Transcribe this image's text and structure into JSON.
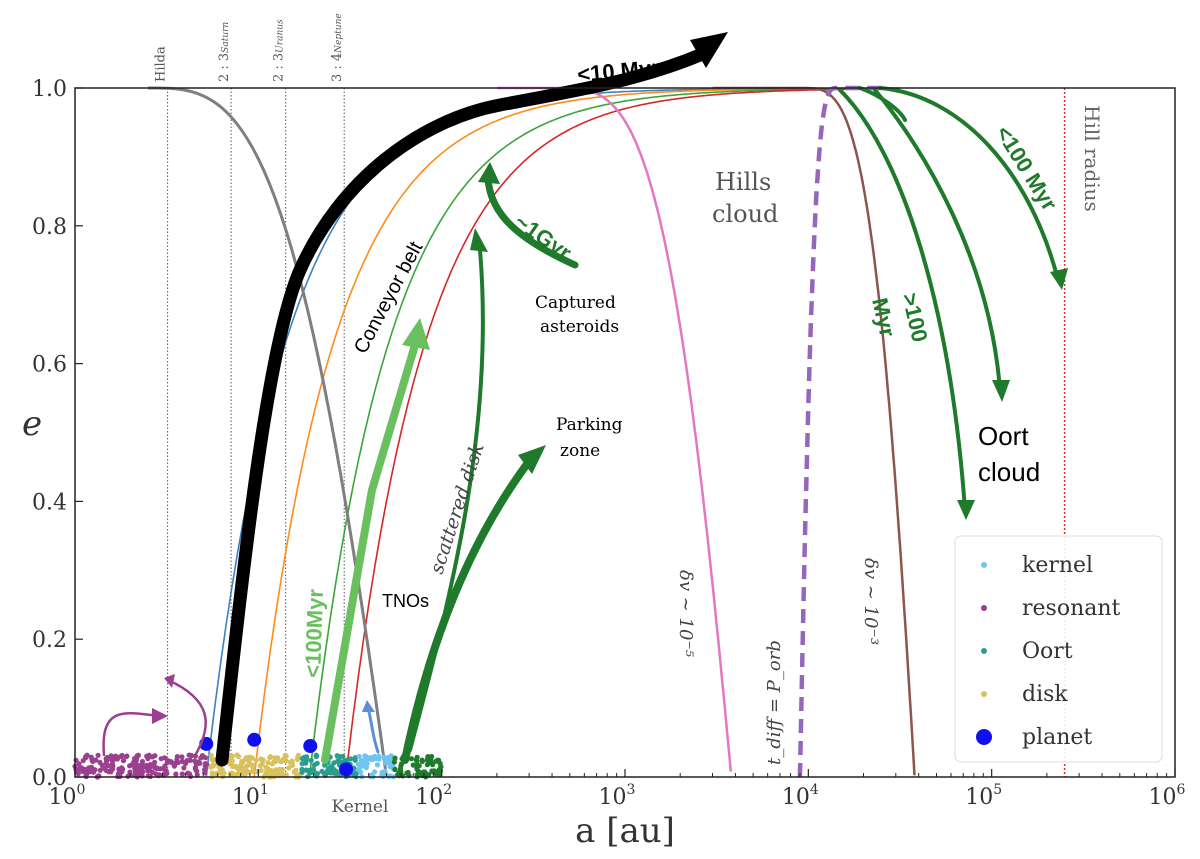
{
  "chart_data": {
    "type": "line",
    "xscale": "log",
    "xlabel": "a [au]",
    "ylabel": "e",
    "xlim": [
      1,
      1000000
    ],
    "ylim": [
      0,
      1.0
    ],
    "xticks": [
      {
        "value": 1,
        "base": "10",
        "exp": "0"
      },
      {
        "value": 10,
        "base": "10",
        "exp": "1"
      },
      {
        "value": 100,
        "base": "10",
        "exp": "2"
      },
      {
        "value": 1000,
        "base": "10",
        "exp": "3"
      },
      {
        "value": 10000,
        "base": "10",
        "exp": "4"
      },
      {
        "value": 100000,
        "base": "10",
        "exp": "5"
      },
      {
        "value": 1000000,
        "base": "10",
        "exp": "6"
      }
    ],
    "yticks": [
      {
        "value": 0.0,
        "label": "0.0"
      },
      {
        "value": 0.2,
        "label": "0.2"
      },
      {
        "value": 0.4,
        "label": "0.4"
      },
      {
        "value": 0.6,
        "label": "0.6"
      },
      {
        "value": 0.8,
        "label": "0.8"
      },
      {
        "value": 1.0,
        "label": "1.0"
      }
    ],
    "resonances": [
      {
        "a": 3.2,
        "label": "Hilda"
      },
      {
        "a": 7.1,
        "label": "2 : 3",
        "sub": "Saturn"
      },
      {
        "a": 14.1,
        "label": "2 : 3",
        "sub": "Uranus"
      },
      {
        "a": 29.4,
        "label": "3 : 4",
        "sub": "Neptune"
      }
    ],
    "hill_radius": {
      "a": 250000,
      "label": "Hill radius",
      "color": "#e03030"
    },
    "perihelion_curves": [
      {
        "q": 5.2,
        "color": "#3b82c4"
      },
      {
        "q": 9.5,
        "color": "#ff8c1a"
      },
      {
        "q": 19,
        "color": "#3aa63a"
      },
      {
        "q": 30,
        "color": "#d62728"
      }
    ],
    "gray_curve": {
      "a_start": 2.5,
      "a_end": 50,
      "color": "#7f7f7f"
    },
    "pink_curve": {
      "label": "δv ∼ 10⁻⁵",
      "color": "#e377c2"
    },
    "purple_dashed": {
      "label": "t_diff = P_orb",
      "color": "#9467bd"
    },
    "brown_curve": {
      "label": "δv ∼ 10⁻³",
      "color": "#8c564b"
    },
    "annotations": {
      "conveyor": "Conveyor belt",
      "myr10": "<10 Myr",
      "gyr": "~1Gyr",
      "captured": [
        "Captured",
        "asteroids"
      ],
      "hills": [
        "Hills",
        "cloud"
      ],
      "myr100a": "<100 Myr",
      "myr100b": [
        ">100",
        "Myr"
      ],
      "oort": [
        "Oort",
        "cloud"
      ],
      "parking": [
        "Parking",
        "zone"
      ],
      "scattered": "scattered disk",
      "tnos": "TNOs",
      "myr100c": "<100Myr",
      "kernel_axis": "Kernel"
    },
    "populations": [
      {
        "name": "resonant",
        "color": "#9b3f8f",
        "a_range": [
          1,
          5.5
        ]
      },
      {
        "name": "disk",
        "color": "#d9c15e",
        "a_range": [
          5.5,
          17
        ]
      },
      {
        "name": "Oort",
        "color": "#2a9d8f",
        "a_range": [
          17,
          35
        ]
      },
      {
        "name": "kernel",
        "color": "#6ec6f0",
        "a_range": [
          35,
          55
        ]
      },
      {
        "name": "scattered",
        "color": "#1f7a2c",
        "a_range": [
          55,
          100
        ]
      }
    ],
    "planets": [
      {
        "a": 5.2,
        "e": 0.048
      },
      {
        "a": 9.5,
        "e": 0.054
      },
      {
        "a": 19.2,
        "e": 0.045
      },
      {
        "a": 30.1,
        "e": 0.011
      }
    ],
    "legend": [
      {
        "label": "kernel",
        "color": "#6ec6f0",
        "kind": "small"
      },
      {
        "label": "resonant",
        "color": "#9b3f8f",
        "kind": "small"
      },
      {
        "label": "Oort",
        "color": "#2a9d8f",
        "kind": "small"
      },
      {
        "label": "disk",
        "color": "#d9c15e",
        "kind": "small"
      },
      {
        "label": "planet",
        "color": "#1010ee",
        "kind": "big"
      }
    ]
  }
}
